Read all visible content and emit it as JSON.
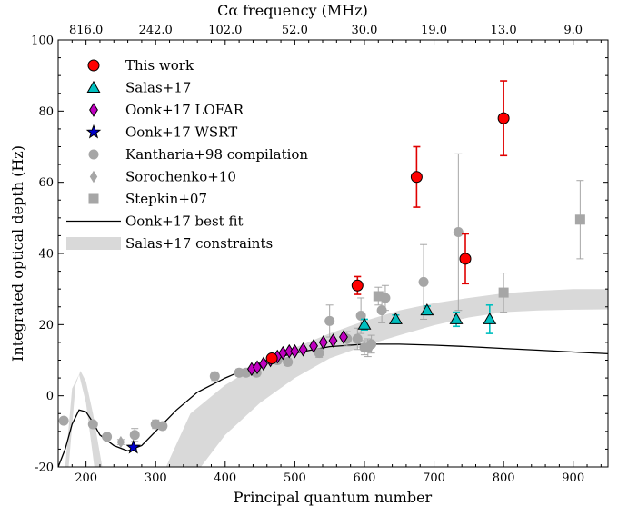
{
  "chart_data": {
    "type": "scatter",
    "xlabel": "Principal quantum number",
    "ylabel": "Integrated optical depth (Hz)",
    "top_xlabel": "Cα frequency (MHz)",
    "xlim": [
      160,
      950
    ],
    "ylim": [
      -20,
      100
    ],
    "x_ticks": [
      200,
      300,
      400,
      500,
      600,
      700,
      800,
      900
    ],
    "y_ticks": [
      -20,
      0,
      20,
      40,
      60,
      80,
      100
    ],
    "top_ticks": [
      {
        "label": "816.0",
        "n": 200
      },
      {
        "label": "242.0",
        "n": 300
      },
      {
        "label": "102.0",
        "n": 400
      },
      {
        "label": "52.0",
        "n": 500
      },
      {
        "label": "30.0",
        "n": 600
      },
      {
        "label": "19.0",
        "n": 700
      },
      {
        "label": "13.0",
        "n": 800
      },
      {
        "label": "9.0",
        "n": 900
      }
    ],
    "legend_position": "top-left",
    "series": [
      {
        "name": "Salas+17 constraints",
        "marker": "band",
        "color": "#d9d9d9",
        "lower": [
          [
            160,
            -30
          ],
          [
            170,
            -20
          ],
          [
            180,
            2
          ],
          [
            190,
            6
          ],
          [
            200,
            -2
          ],
          [
            212,
            -20
          ],
          [
            230,
            -30
          ],
          [
            340,
            -30
          ],
          [
            365,
            -20
          ],
          [
            400,
            -11
          ],
          [
            450,
            -2
          ],
          [
            500,
            5
          ],
          [
            550,
            10.5
          ],
          [
            600,
            14
          ],
          [
            650,
            17
          ],
          [
            700,
            19.8
          ],
          [
            750,
            22
          ],
          [
            800,
            23.5
          ],
          [
            850,
            24
          ],
          [
            900,
            24.2
          ],
          [
            950,
            24.3
          ]
        ],
        "upper": [
          [
            160,
            -30
          ],
          [
            175,
            -20
          ],
          [
            185,
            3
          ],
          [
            192,
            7
          ],
          [
            200,
            4
          ],
          [
            210,
            -5
          ],
          [
            225,
            -22
          ],
          [
            240,
            -30
          ],
          [
            300,
            -30
          ],
          [
            315,
            -20
          ],
          [
            350,
            -5
          ],
          [
            400,
            3
          ],
          [
            450,
            9
          ],
          [
            500,
            13.5
          ],
          [
            550,
            17.5
          ],
          [
            600,
            21
          ],
          [
            650,
            24
          ],
          [
            700,
            26
          ],
          [
            750,
            27.5
          ],
          [
            800,
            28.8
          ],
          [
            850,
            29.5
          ],
          [
            900,
            30
          ],
          [
            950,
            30
          ]
        ]
      },
      {
        "name": "Oonk+17 best fit",
        "marker": "line",
        "color": "#000000",
        "points": [
          [
            160,
            -20
          ],
          [
            170,
            -15
          ],
          [
            180,
            -8
          ],
          [
            190,
            -4
          ],
          [
            200,
            -4.5
          ],
          [
            210,
            -7.5
          ],
          [
            220,
            -11
          ],
          [
            240,
            -14
          ],
          [
            260,
            -15.5
          ],
          [
            280,
            -14
          ],
          [
            300,
            -10
          ],
          [
            330,
            -4
          ],
          [
            360,
            1
          ],
          [
            400,
            5
          ],
          [
            430,
            7.5
          ],
          [
            460,
            10
          ],
          [
            500,
            12
          ],
          [
            550,
            13.8
          ],
          [
            600,
            14.5
          ],
          [
            650,
            14.5
          ],
          [
            700,
            14.2
          ],
          [
            750,
            13.8
          ],
          [
            800,
            13.3
          ],
          [
            850,
            12.8
          ],
          [
            900,
            12.3
          ],
          [
            950,
            11.8
          ]
        ]
      },
      {
        "name": "Kantharia+98 compilation",
        "marker": "circle",
        "color": "#a6a6a6",
        "points": [
          {
            "x": 168,
            "y": -7,
            "err": 0.8
          },
          {
            "x": 210,
            "y": -8,
            "err": 0.8
          },
          {
            "x": 230,
            "y": -11.5,
            "err": 0.8
          },
          {
            "x": 270,
            "y": -11,
            "err": 1.8
          },
          {
            "x": 300,
            "y": -8,
            "err": 1.2
          },
          {
            "x": 310,
            "y": -8.5,
            "err": 1
          },
          {
            "x": 385,
            "y": 5.5,
            "err": 1.2
          },
          {
            "x": 420,
            "y": 6.5,
            "err": 1
          },
          {
            "x": 430,
            "y": 6.5,
            "err": 1
          },
          {
            "x": 445,
            "y": 6.5,
            "err": 1
          },
          {
            "x": 475,
            "y": 10,
            "err": 1
          },
          {
            "x": 490,
            "y": 9.5,
            "err": 1
          },
          {
            "x": 535,
            "y": 12,
            "err": 1.2
          },
          {
            "x": 550,
            "y": 21,
            "err": 4.5
          },
          {
            "x": 575,
            "y": 16,
            "err": 2
          },
          {
            "x": 590,
            "y": 16,
            "err": 3
          },
          {
            "x": 595,
            "y": 22.5,
            "err": 5
          },
          {
            "x": 600,
            "y": 13.5,
            "err": 2
          },
          {
            "x": 605,
            "y": 13.5,
            "err": 2.5
          },
          {
            "x": 610,
            "y": 14.5,
            "err": 2.5
          },
          {
            "x": 625,
            "y": 24,
            "err": 3.5
          },
          {
            "x": 630,
            "y": 27.5,
            "err": 3.5
          },
          {
            "x": 685,
            "y": 32,
            "err": 10.5
          },
          {
            "x": 735,
            "y": 46,
            "err": 22
          }
        ]
      },
      {
        "name": "Sorochenko+10",
        "marker": "diamond",
        "color": "#a6a6a6",
        "points": [
          {
            "x": 250,
            "y": -13,
            "err": 0.7
          }
        ]
      },
      {
        "name": "Stepkin+07",
        "marker": "square",
        "color": "#a6a6a6",
        "points": [
          {
            "x": 620,
            "y": 28,
            "err": 2.5
          },
          {
            "x": 800,
            "y": 29,
            "err": 5.5
          },
          {
            "x": 910,
            "y": 49.5,
            "err": 11
          }
        ]
      },
      {
        "name": "Oonk+17 LOFAR",
        "marker": "diamond",
        "color": "#c000c0",
        "points": [
          {
            "x": 438,
            "y": 7.5
          },
          {
            "x": 446,
            "y": 8
          },
          {
            "x": 455,
            "y": 9
          },
          {
            "x": 465,
            "y": 10
          },
          {
            "x": 475,
            "y": 11
          },
          {
            "x": 483,
            "y": 12
          },
          {
            "x": 492,
            "y": 12.5
          },
          {
            "x": 500,
            "y": 12.5
          },
          {
            "x": 512,
            "y": 13
          },
          {
            "x": 527,
            "y": 14
          },
          {
            "x": 541,
            "y": 15
          },
          {
            "x": 555,
            "y": 15.5
          },
          {
            "x": 570,
            "y": 16.5
          }
        ]
      },
      {
        "name": "Oonk+17 WSRT",
        "marker": "star",
        "color": "#0000cc",
        "points": [
          {
            "x": 268,
            "y": -14.5,
            "err": 0.5
          }
        ]
      },
      {
        "name": "This work",
        "marker": "circle",
        "color": "#ff0000",
        "errcolor": "#e00000",
        "points": [
          {
            "x": 467,
            "y": 10.5,
            "err": 0.8
          },
          {
            "x": 590,
            "y": 31,
            "err": 2.5
          },
          {
            "x": 675,
            "y": 61.5,
            "err": 8.5
          },
          {
            "x": 745,
            "y": 38.5,
            "err": 7
          },
          {
            "x": 800,
            "y": 78,
            "err": 10.5
          }
        ]
      },
      {
        "name": "Salas+17",
        "marker": "triangle",
        "color": "#00bfbf",
        "errcolor": "#00bfbf",
        "points": [
          {
            "x": 600,
            "y": 20,
            "err": 1.5
          },
          {
            "x": 645,
            "y": 21.5,
            "err": 1.2
          },
          {
            "x": 690,
            "y": 24,
            "err": 1.2
          },
          {
            "x": 732,
            "y": 21.5,
            "err": 2
          },
          {
            "x": 780,
            "y": 21.5,
            "err": 4
          }
        ]
      }
    ],
    "legend_order": [
      "This work",
      "Salas+17",
      "Oonk+17 LOFAR",
      "Oonk+17 WSRT",
      "Kantharia+98 compilation",
      "Sorochenko+10",
      "Stepkin+07",
      "Oonk+17 best fit",
      "Salas+17 constraints"
    ]
  }
}
